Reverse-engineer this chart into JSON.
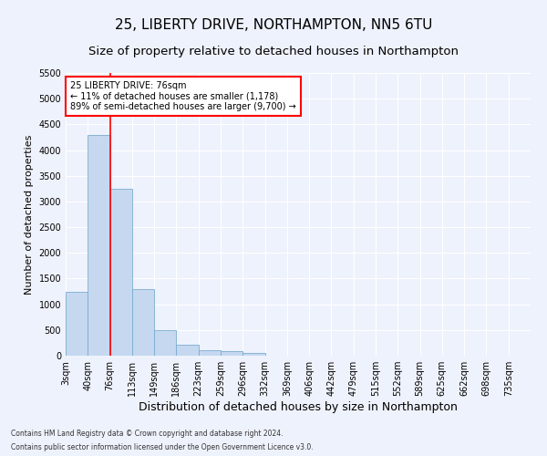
{
  "title": "25, LIBERTY DRIVE, NORTHAMPTON, NN5 6TU",
  "subtitle": "Size of property relative to detached houses in Northampton",
  "xlabel": "Distribution of detached houses by size in Northampton",
  "ylabel": "Number of detached properties",
  "categories": [
    "3sqm",
    "40sqm",
    "76sqm",
    "113sqm",
    "149sqm",
    "186sqm",
    "223sqm",
    "259sqm",
    "296sqm",
    "332sqm",
    "369sqm",
    "406sqm",
    "442sqm",
    "479sqm",
    "515sqm",
    "552sqm",
    "589sqm",
    "625sqm",
    "662sqm",
    "698sqm",
    "735sqm"
  ],
  "values": [
    1250,
    4300,
    3250,
    1300,
    500,
    220,
    100,
    80,
    60,
    0,
    0,
    0,
    0,
    0,
    0,
    0,
    0,
    0,
    0,
    0,
    0
  ],
  "bar_color": "#c5d8f0",
  "bar_edgecolor": "#7aadcf",
  "red_line_index": 2,
  "annotation_text": "25 LIBERTY DRIVE: 76sqm\n← 11% of detached houses are smaller (1,178)\n89% of semi-detached houses are larger (9,700) →",
  "annotation_box_color": "white",
  "annotation_edge_color": "red",
  "ylim": [
    0,
    5500
  ],
  "yticks": [
    0,
    500,
    1000,
    1500,
    2000,
    2500,
    3000,
    3500,
    4000,
    4500,
    5000,
    5500
  ],
  "footer_line1": "Contains HM Land Registry data © Crown copyright and database right 2024.",
  "footer_line2": "Contains public sector information licensed under the Open Government Licence v3.0.",
  "bg_color": "#eef2fc",
  "grid_color": "white",
  "title_fontsize": 11,
  "subtitle_fontsize": 9.5,
  "xlabel_fontsize": 9,
  "ylabel_fontsize": 8,
  "tick_fontsize": 7,
  "annotation_fontsize": 7,
  "footer_fontsize": 5.5
}
